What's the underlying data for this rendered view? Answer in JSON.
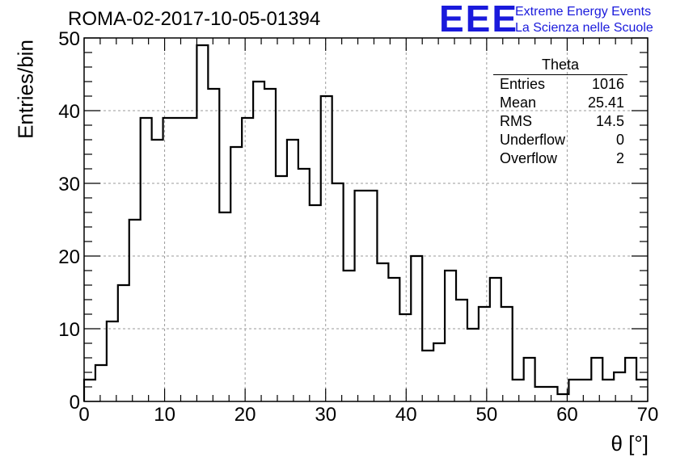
{
  "header": {
    "run_title": "ROMA-02-2017-10-05-01394",
    "logo_mark": "EEE",
    "logo_line1": "Extreme Energy Events",
    "logo_line2": "La Scienza nelle Scuole",
    "logo_color": "#1a1adc"
  },
  "stats_box": {
    "title": "Theta",
    "rows": [
      {
        "label": "Entries",
        "value": "1016"
      },
      {
        "label": "Mean",
        "value": "25.41"
      },
      {
        "label": "RMS",
        "value": "14.5"
      },
      {
        "label": "Underflow",
        "value": "0"
      },
      {
        "label": "Overflow",
        "value": "2"
      }
    ]
  },
  "chart_data": {
    "type": "histogram",
    "xlabel": "θ [°]",
    "ylabel": "Entries/bin",
    "xlim": [
      0,
      70
    ],
    "ylim": [
      0,
      50
    ],
    "bin_width": 1.4,
    "bin_start": 0,
    "values": [
      3,
      5,
      11,
      16,
      25,
      39,
      36,
      39,
      39,
      39,
      49,
      43,
      26,
      35,
      39,
      44,
      43,
      31,
      36,
      32,
      27,
      42,
      30,
      18,
      29,
      29,
      19,
      17,
      12,
      20,
      7,
      8,
      18,
      14,
      10,
      13,
      17,
      13,
      3,
      6,
      2,
      2,
      1,
      3,
      3,
      6,
      3,
      4,
      6,
      3
    ],
    "x_ticks": [
      "0",
      "10",
      "20",
      "30",
      "40",
      "50",
      "60",
      "70"
    ],
    "y_ticks": [
      "0",
      "10",
      "20",
      "30",
      "40",
      "50"
    ],
    "grid": true,
    "line_color": "#000000"
  }
}
